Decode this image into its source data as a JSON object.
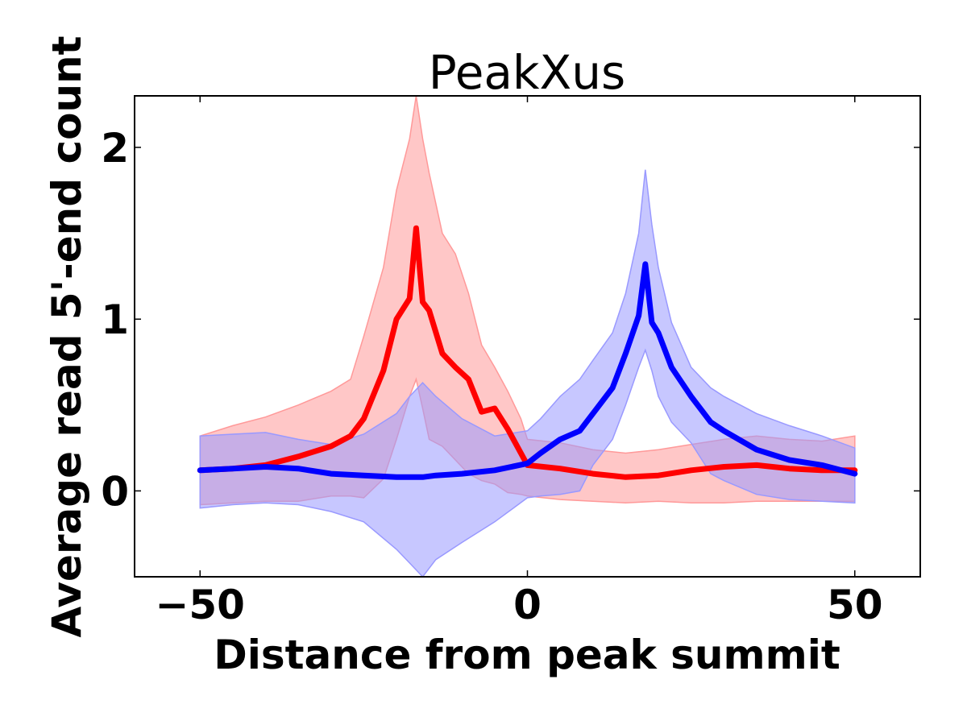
{
  "chart_data": {
    "type": "line",
    "title": "PeakXus",
    "xlabel": "Distance from peak summit",
    "ylabel": "Average read 5'-end count",
    "xlim": [
      -60,
      60
    ],
    "ylim": [
      -0.5,
      2.3
    ],
    "xticks": [
      {
        "value": -50,
        "label": "−50"
      },
      {
        "value": 0,
        "label": "0"
      },
      {
        "value": 50,
        "label": "50"
      }
    ],
    "yticks": [
      {
        "value": 0,
        "label": "0"
      },
      {
        "value": 1,
        "label": "1"
      },
      {
        "value": 2,
        "label": "2"
      }
    ],
    "grid": false,
    "legend": "none",
    "series": [
      {
        "color": "#ff0000",
        "band_color": "#ff9999",
        "x": [
          -50,
          -45,
          -40,
          -35,
          -30,
          -27,
          -25,
          -22,
          -20,
          -18,
          -17,
          -16,
          -15,
          -13,
          -11,
          -9,
          -7,
          -5,
          -3,
          -1,
          0,
          5,
          10,
          15,
          20,
          25,
          30,
          35,
          40,
          45,
          50
        ],
        "mean": [
          0.12,
          0.13,
          0.15,
          0.2,
          0.26,
          0.32,
          0.42,
          0.7,
          1.0,
          1.12,
          1.53,
          1.1,
          1.05,
          0.8,
          0.72,
          0.65,
          0.46,
          0.48,
          0.36,
          0.22,
          0.15,
          0.13,
          0.1,
          0.08,
          0.09,
          0.12,
          0.14,
          0.15,
          0.13,
          0.12,
          0.12
        ],
        "upper": [
          0.32,
          0.38,
          0.43,
          0.5,
          0.58,
          0.65,
          0.9,
          1.3,
          1.75,
          2.05,
          2.3,
          2.05,
          1.85,
          1.5,
          1.38,
          1.15,
          0.85,
          0.72,
          0.58,
          0.42,
          0.3,
          0.28,
          0.24,
          0.22,
          0.24,
          0.27,
          0.3,
          0.32,
          0.3,
          0.29,
          0.32
        ],
        "lower": [
          -0.08,
          -0.07,
          -0.06,
          -0.06,
          -0.03,
          -0.03,
          -0.04,
          0.07,
          0.3,
          0.55,
          0.65,
          0.48,
          0.3,
          0.26,
          0.18,
          0.1,
          0.06,
          0.04,
          -0.01,
          -0.02,
          -0.03,
          -0.05,
          -0.06,
          -0.07,
          -0.06,
          -0.07,
          -0.07,
          -0.06,
          -0.06,
          -0.06,
          -0.06
        ]
      },
      {
        "color": "#0000ff",
        "band_color": "#9999ff",
        "x": [
          -50,
          -45,
          -40,
          -35,
          -30,
          -25,
          -20,
          -18,
          -16,
          -14,
          -10,
          -5,
          0,
          2,
          5,
          8,
          10,
          13,
          15,
          17,
          18,
          19,
          20,
          22,
          25,
          28,
          30,
          35,
          40,
          45,
          50
        ],
        "mean": [
          0.12,
          0.13,
          0.14,
          0.13,
          0.1,
          0.09,
          0.08,
          0.08,
          0.08,
          0.09,
          0.1,
          0.12,
          0.16,
          0.22,
          0.3,
          0.35,
          0.45,
          0.6,
          0.8,
          1.02,
          1.32,
          0.98,
          0.92,
          0.72,
          0.55,
          0.4,
          0.35,
          0.24,
          0.18,
          0.15,
          0.1
        ],
        "upper": [
          0.32,
          0.33,
          0.34,
          0.3,
          0.27,
          0.33,
          0.45,
          0.55,
          0.63,
          0.55,
          0.42,
          0.32,
          0.35,
          0.42,
          0.55,
          0.65,
          0.76,
          0.92,
          1.15,
          1.5,
          1.87,
          1.55,
          1.3,
          0.98,
          0.72,
          0.6,
          0.55,
          0.45,
          0.38,
          0.32,
          0.25
        ],
        "lower": [
          -0.1,
          -0.08,
          -0.07,
          -0.08,
          -0.12,
          -0.18,
          -0.34,
          -0.42,
          -0.5,
          -0.4,
          -0.3,
          -0.18,
          -0.04,
          -0.03,
          -0.02,
          0.0,
          0.15,
          0.3,
          0.5,
          0.72,
          0.82,
          0.7,
          0.55,
          0.4,
          0.28,
          0.1,
          0.06,
          -0.02,
          -0.05,
          -0.06,
          -0.07
        ]
      }
    ]
  }
}
